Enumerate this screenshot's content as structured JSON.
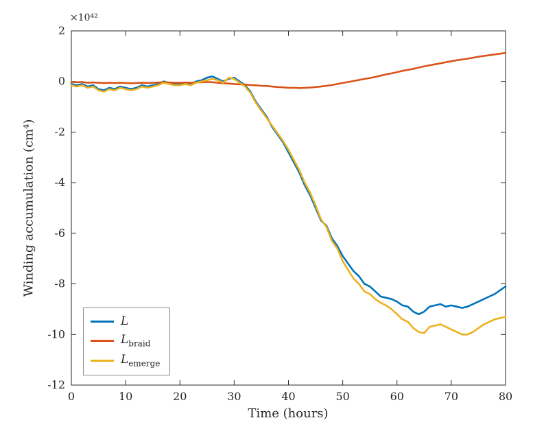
{
  "chart_data": {
    "type": "line",
    "title": "",
    "xlabel": "Time (hours)",
    "ylabel": "Winding accumulation (cm⁴)",
    "exponent_label": "×10⁴²",
    "xlim": [
      0,
      80
    ],
    "ylim": [
      -12,
      2
    ],
    "xticks": [
      0,
      10,
      20,
      30,
      40,
      50,
      60,
      70,
      80
    ],
    "yticks": [
      -12,
      -10,
      -8,
      -6,
      -4,
      -2,
      0,
      2
    ],
    "unit_scale": "1e42",
    "grid": false,
    "legend_position": "lower-left",
    "axis_color": "#262626",
    "x": [
      0,
      1,
      2,
      3,
      4,
      5,
      6,
      7,
      8,
      9,
      10,
      11,
      12,
      13,
      14,
      15,
      16,
      17,
      18,
      19,
      20,
      21,
      22,
      23,
      24,
      25,
      26,
      27,
      28,
      29,
      30,
      31,
      32,
      33,
      34,
      35,
      36,
      37,
      38,
      39,
      40,
      41,
      42,
      43,
      44,
      45,
      46,
      47,
      48,
      49,
      50,
      51,
      52,
      53,
      54,
      55,
      56,
      57,
      58,
      59,
      60,
      61,
      62,
      63,
      64,
      65,
      66,
      67,
      68,
      69,
      70,
      71,
      72,
      73,
      74,
      75,
      76,
      77,
      78,
      79,
      80
    ],
    "series": [
      {
        "name_main": "L",
        "name_sub": "",
        "color": "#0072BD",
        "values": [
          -0.1,
          -0.15,
          -0.1,
          -0.2,
          -0.15,
          -0.3,
          -0.35,
          -0.25,
          -0.3,
          -0.2,
          -0.25,
          -0.3,
          -0.25,
          -0.15,
          -0.2,
          -0.15,
          -0.1,
          0.0,
          -0.05,
          -0.1,
          -0.1,
          -0.05,
          -0.1,
          0.0,
          0.05,
          0.15,
          0.2,
          0.1,
          0.0,
          0.1,
          0.15,
          0.0,
          -0.15,
          -0.4,
          -0.8,
          -1.1,
          -1.4,
          -1.8,
          -2.1,
          -2.4,
          -2.8,
          -3.2,
          -3.6,
          -4.1,
          -4.5,
          -5.0,
          -5.5,
          -5.7,
          -6.2,
          -6.5,
          -6.9,
          -7.2,
          -7.5,
          -7.7,
          -8.0,
          -8.1,
          -8.3,
          -8.5,
          -8.55,
          -8.6,
          -8.7,
          -8.85,
          -8.9,
          -9.1,
          -9.2,
          -9.1,
          -8.9,
          -8.85,
          -8.8,
          -8.9,
          -8.85,
          -8.9,
          -8.95,
          -8.9,
          -8.8,
          -8.7,
          -8.6,
          -8.5,
          -8.4,
          -8.25,
          -8.1
        ]
      },
      {
        "name_main": "L",
        "name_sub": "braid",
        "color": "#D95319",
        "values": [
          -0.02,
          -0.03,
          -0.02,
          -0.05,
          -0.04,
          -0.05,
          -0.06,
          -0.05,
          -0.06,
          -0.05,
          -0.06,
          -0.07,
          -0.06,
          -0.05,
          -0.06,
          -0.05,
          -0.04,
          -0.03,
          -0.04,
          -0.05,
          -0.05,
          -0.04,
          -0.05,
          -0.04,
          -0.03,
          -0.02,
          -0.03,
          -0.05,
          -0.07,
          -0.08,
          -0.1,
          -0.11,
          -0.12,
          -0.14,
          -0.15,
          -0.17,
          -0.18,
          -0.2,
          -0.22,
          -0.23,
          -0.25,
          -0.25,
          -0.26,
          -0.25,
          -0.24,
          -0.22,
          -0.2,
          -0.17,
          -0.14,
          -0.1,
          -0.06,
          -0.02,
          0.02,
          0.06,
          0.1,
          0.14,
          0.18,
          0.23,
          0.28,
          0.32,
          0.37,
          0.42,
          0.46,
          0.5,
          0.55,
          0.6,
          0.64,
          0.68,
          0.72,
          0.76,
          0.8,
          0.84,
          0.87,
          0.9,
          0.94,
          0.98,
          1.01,
          1.04,
          1.07,
          1.1,
          1.13
        ]
      },
      {
        "name_main": "L",
        "name_sub": "emerge",
        "color": "#EDB120",
        "values": [
          -0.15,
          -0.2,
          -0.15,
          -0.25,
          -0.2,
          -0.35,
          -0.4,
          -0.3,
          -0.35,
          -0.25,
          -0.3,
          -0.35,
          -0.3,
          -0.2,
          -0.25,
          -0.2,
          -0.15,
          -0.05,
          -0.1,
          -0.15,
          -0.15,
          -0.1,
          -0.15,
          -0.05,
          0.0,
          0.05,
          0.1,
          0.05,
          -0.05,
          0.15,
          0.1,
          -0.05,
          -0.2,
          -0.45,
          -0.85,
          -1.15,
          -1.45,
          -1.75,
          -2.05,
          -2.35,
          -2.7,
          -3.1,
          -3.5,
          -4.0,
          -4.4,
          -4.9,
          -5.45,
          -5.75,
          -6.3,
          -6.6,
          -7.1,
          -7.45,
          -7.8,
          -8.0,
          -8.3,
          -8.4,
          -8.6,
          -8.75,
          -8.85,
          -9.0,
          -9.2,
          -9.4,
          -9.5,
          -9.75,
          -9.9,
          -9.95,
          -9.7,
          -9.65,
          -9.6,
          -9.7,
          -9.8,
          -9.9,
          -10.0,
          -10.0,
          -9.9,
          -9.75,
          -9.6,
          -9.5,
          -9.4,
          -9.35,
          -9.3
        ]
      }
    ]
  }
}
